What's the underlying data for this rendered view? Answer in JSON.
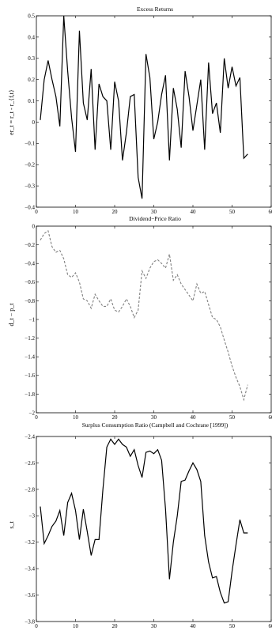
{
  "chart_data": [
    {
      "type": "line",
      "title": "Excess Returns",
      "ylabel": "er_t = r_t - r_{f,t}",
      "xlim": [
        0,
        60
      ],
      "ylim": [
        -0.4,
        0.5
      ],
      "xticks": [
        0,
        10,
        20,
        30,
        40,
        50,
        60
      ],
      "yticks": [
        -0.4,
        -0.3,
        -0.2,
        -0.1,
        0,
        0.1,
        0.2,
        0.3,
        0.4,
        0.5
      ],
      "xtick_labels": [
        "0",
        "10",
        "20",
        "30",
        "40",
        "50",
        "60"
      ],
      "ytick_labels": [
        "−0.4",
        "−0.3",
        "−0.2",
        "−0.1",
        "0",
        "0.1",
        "0.2",
        "0.3",
        "0.4",
        "0.5"
      ],
      "line_style": "solid",
      "color": "#000000",
      "x": [
        1,
        2,
        3,
        4,
        5,
        6,
        7,
        8,
        9,
        10,
        11,
        12,
        13,
        14,
        15,
        16,
        17,
        18,
        19,
        20,
        21,
        22,
        23,
        24,
        25,
        26,
        27,
        28,
        29,
        30,
        31,
        32,
        33,
        34,
        35,
        36,
        37,
        38,
        39,
        40,
        41,
        42,
        43,
        44,
        45,
        46,
        47,
        48,
        49,
        50,
        51,
        52,
        53,
        54
      ],
      "y": [
        0.01,
        0.2,
        0.29,
        0.2,
        0.12,
        -0.02,
        0.5,
        0.24,
        0.02,
        -0.14,
        0.43,
        0.09,
        0.01,
        0.25,
        -0.13,
        0.18,
        0.12,
        0.1,
        -0.13,
        0.19,
        0.1,
        -0.18,
        -0.05,
        0.12,
        0.13,
        -0.26,
        -0.36,
        0.32,
        0.21,
        -0.08,
        0.0,
        0.13,
        0.22,
        -0.18,
        0.16,
        0.06,
        -0.12,
        0.24,
        0.12,
        -0.04,
        0.08,
        0.2,
        -0.13,
        0.28,
        0.04,
        0.09,
        -0.05,
        0.3,
        0.16,
        0.26,
        0.17,
        0.21,
        -0.17,
        -0.15
      ]
    },
    {
      "type": "line",
      "title": "Dividend−Price Ratio",
      "ylabel": "d_t − p_t",
      "xlim": [
        0,
        60
      ],
      "ylim": [
        -2,
        0
      ],
      "xticks": [
        0,
        10,
        20,
        30,
        40,
        50,
        60
      ],
      "yticks": [
        -2,
        -1.8,
        -1.6,
        -1.4,
        -1.2,
        -1,
        -0.8,
        -0.6,
        -0.4,
        -0.2,
        0
      ],
      "xtick_labels": [
        "0",
        "10",
        "20",
        "30",
        "40",
        "50",
        "60"
      ],
      "ytick_labels": [
        "−2",
        "−1.8",
        "−1.6",
        "−1.4",
        "−1.2",
        "−1",
        "−0.8",
        "−0.6",
        "−0.4",
        "−0.2",
        "0"
      ],
      "line_style": "dashed",
      "color": "#808080",
      "x": [
        1,
        2,
        3,
        4,
        5,
        6,
        7,
        8,
        9,
        10,
        11,
        12,
        13,
        14,
        15,
        16,
        17,
        18,
        19,
        20,
        21,
        22,
        23,
        24,
        25,
        26,
        27,
        28,
        29,
        30,
        31,
        32,
        33,
        34,
        35,
        36,
        37,
        38,
        39,
        40,
        41,
        42,
        43,
        44,
        45,
        46,
        47,
        48,
        49,
        50,
        51,
        52,
        53,
        54
      ],
      "y": [
        -0.15,
        -0.08,
        -0.05,
        -0.22,
        -0.28,
        -0.26,
        -0.35,
        -0.52,
        -0.55,
        -0.5,
        -0.6,
        -0.78,
        -0.8,
        -0.88,
        -0.73,
        -0.8,
        -0.86,
        -0.86,
        -0.78,
        -0.9,
        -0.92,
        -0.86,
        -0.78,
        -0.86,
        -0.98,
        -0.9,
        -0.48,
        -0.56,
        -0.45,
        -0.38,
        -0.36,
        -0.4,
        -0.45,
        -0.3,
        -0.58,
        -0.52,
        -0.62,
        -0.68,
        -0.74,
        -0.8,
        -0.62,
        -0.72,
        -0.7,
        -0.84,
        -0.98,
        -1.0,
        -1.08,
        -1.22,
        -1.35,
        -1.5,
        -1.62,
        -1.72,
        -1.86,
        -1.7
      ]
    },
    {
      "type": "line",
      "title": "Surplus Consumption Ratio (Campbell and Cochrane [1999])",
      "ylabel": "s_t",
      "xlim": [
        0,
        60
      ],
      "ylim": [
        -3.8,
        -2.4
      ],
      "xticks": [
        0,
        10,
        20,
        30,
        40,
        50,
        60
      ],
      "yticks": [
        -3.8,
        -3.6,
        -3.4,
        -3.2,
        -3,
        -2.8,
        -2.6,
        -2.4
      ],
      "xtick_labels": [
        "0",
        "10",
        "20",
        "30",
        "40",
        "50",
        "60"
      ],
      "ytick_labels": [
        "−3.8",
        "−3.6",
        "−3.4",
        "−3.2",
        "−3",
        "−2.8",
        "−2.6",
        "−2.4"
      ],
      "line_style": "solid",
      "color": "#000000",
      "x": [
        1,
        2,
        3,
        4,
        5,
        6,
        7,
        8,
        9,
        10,
        11,
        12,
        13,
        14,
        15,
        16,
        17,
        18,
        19,
        20,
        21,
        22,
        23,
        24,
        25,
        26,
        27,
        28,
        29,
        30,
        31,
        32,
        33,
        34,
        35,
        36,
        37,
        38,
        39,
        40,
        41,
        42,
        43,
        44,
        45,
        46,
        47,
        48,
        49,
        50,
        51,
        52,
        53,
        54
      ],
      "y": [
        -2.93,
        -3.21,
        -3.15,
        -3.08,
        -3.04,
        -2.96,
        -3.15,
        -2.9,
        -2.83,
        -2.96,
        -3.18,
        -2.95,
        -3.12,
        -3.3,
        -3.18,
        -3.18,
        -2.8,
        -2.48,
        -2.42,
        -2.46,
        -2.42,
        -2.46,
        -2.48,
        -2.55,
        -2.5,
        -2.62,
        -2.71,
        -2.52,
        -2.51,
        -2.53,
        -2.5,
        -2.58,
        -2.95,
        -3.48,
        -3.2,
        -3.0,
        -2.74,
        -2.73,
        -2.66,
        -2.6,
        -2.65,
        -2.74,
        -3.15,
        -3.35,
        -3.47,
        -3.46,
        -3.58,
        -3.66,
        -3.65,
        -3.42,
        -3.22,
        -3.03,
        -3.13,
        -3.13
      ]
    }
  ]
}
